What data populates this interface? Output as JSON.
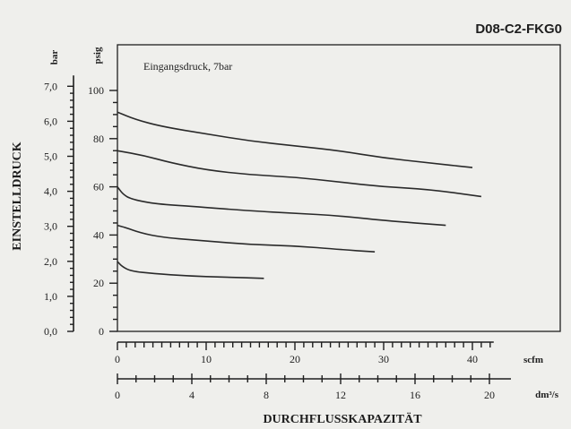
{
  "chart_data": {
    "type": "line",
    "title": "D08-C2-FKG0",
    "annotation": "Eingangsdruck, 7bar",
    "ylabel": "EINSTELLDRUCK",
    "xlabel": "DURCHFLUSSKAPAZITÄT",
    "y_axes": [
      {
        "unit": "bar",
        "range": [
          0,
          7.0
        ],
        "ticks": [
          "0,0",
          "1,0",
          "2,0",
          "3,0",
          "4,0",
          "5,0",
          "6,0",
          "7,0"
        ]
      },
      {
        "unit": "psig",
        "range": [
          0,
          100
        ],
        "ticks": [
          "0",
          "20",
          "40",
          "60",
          "80",
          "100"
        ]
      }
    ],
    "x_axes": [
      {
        "unit": "scfm",
        "range": [
          0,
          42
        ],
        "ticks": [
          "0",
          "10",
          "20",
          "30",
          "40"
        ]
      },
      {
        "unit": "dm³/s",
        "range": [
          0,
          20
        ],
        "ticks": [
          "0",
          "4",
          "8",
          "12",
          "16",
          "20"
        ]
      }
    ],
    "x_unit": "scfm",
    "y_unit": "psig",
    "grid": false,
    "series": [
      {
        "points": [
          [
            0,
            91
          ],
          [
            2,
            88
          ],
          [
            5,
            85
          ],
          [
            10,
            82
          ],
          [
            15,
            79
          ],
          [
            20,
            77
          ],
          [
            25,
            75
          ],
          [
            30,
            72
          ],
          [
            35,
            70
          ],
          [
            40,
            68
          ]
        ]
      },
      {
        "points": [
          [
            0,
            75
          ],
          [
            3,
            73
          ],
          [
            6,
            70
          ],
          [
            10,
            67
          ],
          [
            15,
            65
          ],
          [
            20,
            64
          ],
          [
            25,
            62
          ],
          [
            30,
            60
          ],
          [
            35,
            59
          ],
          [
            41,
            56
          ]
        ]
      },
      {
        "points": [
          [
            0,
            60
          ],
          [
            0.6,
            57
          ],
          [
            1.5,
            55
          ],
          [
            4,
            53
          ],
          [
            8,
            52
          ],
          [
            15,
            50
          ],
          [
            20,
            49
          ],
          [
            25,
            48
          ],
          [
            30,
            46
          ],
          [
            37,
            44
          ]
        ]
      },
      {
        "points": [
          [
            0,
            44
          ],
          [
            1,
            43
          ],
          [
            2.5,
            41
          ],
          [
            5,
            39
          ],
          [
            10,
            37.5
          ],
          [
            15,
            36
          ],
          [
            20,
            35.5
          ],
          [
            25,
            34
          ],
          [
            29,
            33
          ]
        ]
      },
      {
        "points": [
          [
            0,
            29
          ],
          [
            0.5,
            27
          ],
          [
            1.5,
            25
          ],
          [
            4,
            24
          ],
          [
            8,
            23
          ],
          [
            12,
            22.5
          ],
          [
            16.5,
            22
          ]
        ]
      }
    ]
  }
}
